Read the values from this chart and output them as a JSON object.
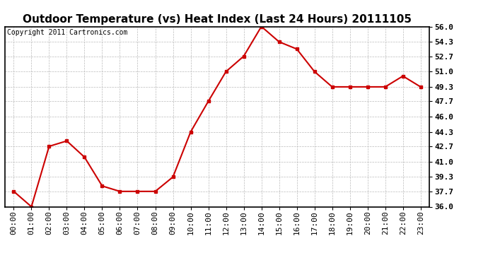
{
  "title": "Outdoor Temperature (vs) Heat Index (Last 24 Hours) 20111105",
  "copyright": "Copyright 2011 Cartronics.com",
  "x_labels": [
    "00:00",
    "01:00",
    "02:00",
    "03:00",
    "04:00",
    "05:00",
    "06:00",
    "07:00",
    "08:00",
    "09:00",
    "10:00",
    "11:00",
    "12:00",
    "13:00",
    "14:00",
    "15:00",
    "16:00",
    "17:00",
    "18:00",
    "19:00",
    "20:00",
    "21:00",
    "22:00",
    "23:00"
  ],
  "y_values": [
    37.7,
    36.0,
    42.7,
    43.3,
    41.5,
    38.3,
    37.7,
    37.7,
    37.7,
    39.3,
    44.3,
    47.7,
    51.0,
    52.7,
    56.0,
    54.3,
    53.5,
    51.0,
    49.3,
    49.3,
    49.3,
    49.3,
    50.5,
    49.3
  ],
  "y_min": 36.0,
  "y_max": 56.0,
  "y_ticks": [
    36.0,
    37.7,
    39.3,
    41.0,
    42.7,
    44.3,
    46.0,
    47.7,
    49.3,
    51.0,
    52.7,
    54.3,
    56.0
  ],
  "line_color": "#cc0000",
  "marker": "s",
  "marker_size": 3,
  "bg_color": "#ffffff",
  "plot_bg_color": "#ffffff",
  "grid_color": "#bbbbbb",
  "title_fontsize": 11,
  "tick_fontsize": 8,
  "copyright_fontsize": 7
}
